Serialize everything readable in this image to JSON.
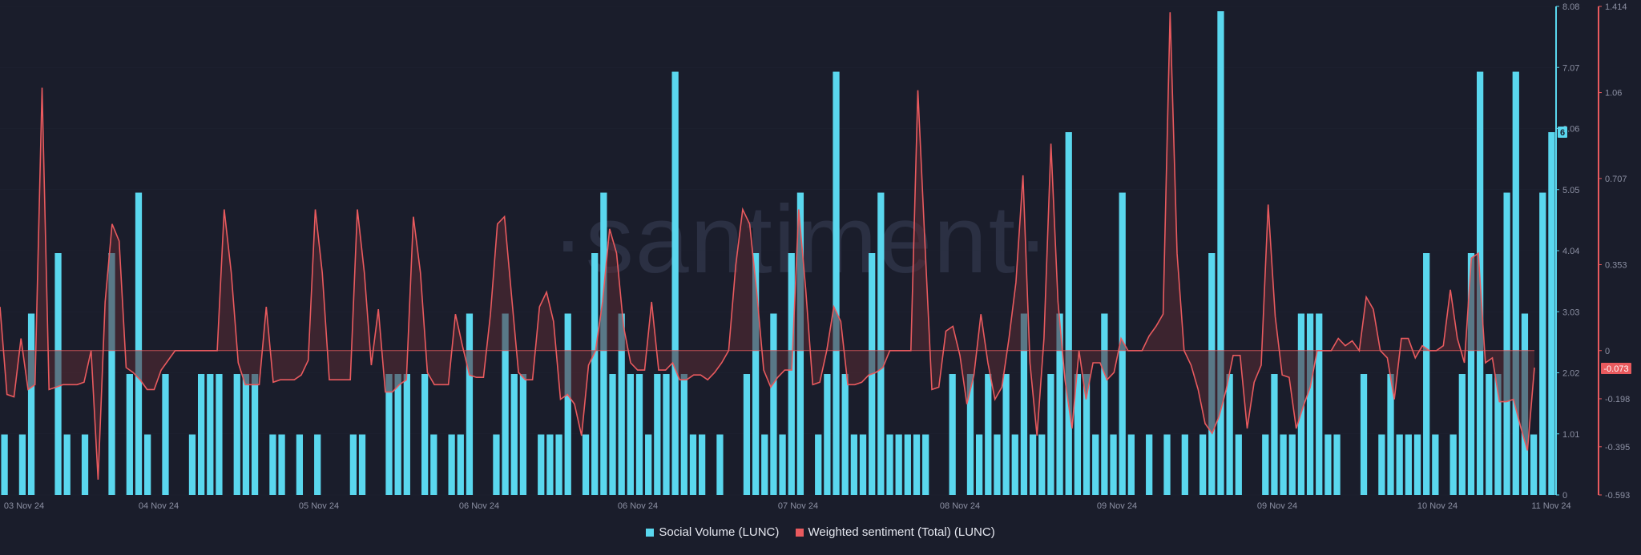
{
  "chart_data": {
    "type": "bar+line",
    "watermark": "·santiment·",
    "x_labels": [
      "03 Nov 24",
      "04 Nov 24",
      "05 Nov 24",
      "06 Nov 24",
      "06 Nov 24",
      "07 Nov 24",
      "08 Nov 24",
      "09 Nov 24",
      "09 Nov 24",
      "10 Nov 24",
      "11 Nov 24"
    ],
    "left_axis": {
      "label": "Social Volume (LUNC)",
      "ticks": [
        "8.08",
        "7.07",
        "6.06",
        "5.05",
        "4.04",
        "3.03",
        "2.02",
        "1.01",
        "0"
      ],
      "ylim": [
        0,
        8.08
      ]
    },
    "right_axis": {
      "label": "Weighted sentiment (Total) (LUNC)",
      "ticks": [
        "1.414",
        "1.06",
        "0.707",
        "0.353",
        "0",
        "-0.198",
        "-0.395",
        "-0.593"
      ],
      "ylim": [
        -0.593,
        1.414
      ]
    },
    "badges": {
      "social_volume_last": "6",
      "sentiment_last": "-0.073"
    },
    "colors": {
      "bars": "#5ad7ee",
      "line": "#e95a5e",
      "fill": "#5a2a33",
      "background": "#1a1d2b",
      "grid": "#2c3041"
    },
    "series": [
      {
        "name": "Social Volume (LUNC)",
        "type": "bar",
        "values": [
          1,
          0,
          1,
          3,
          0,
          0,
          4,
          1,
          0,
          1,
          0,
          0,
          4,
          0,
          2,
          5,
          1,
          0,
          2,
          0,
          0,
          1,
          2,
          2,
          2,
          0,
          2,
          2,
          2,
          0,
          1,
          1,
          0,
          1,
          0,
          1,
          0,
          0,
          0,
          1,
          1,
          0,
          0,
          2,
          2,
          2,
          0,
          2,
          1,
          0,
          1,
          1,
          3,
          0,
          0,
          1,
          3,
          2,
          2,
          0,
          1,
          1,
          1,
          3,
          0,
          1,
          4,
          5,
          2,
          3,
          2,
          2,
          1,
          2,
          2,
          7,
          2,
          1,
          1,
          0,
          1,
          0,
          0,
          2,
          4,
          1,
          3,
          1,
          4,
          5,
          0,
          1,
          2,
          7,
          2,
          1,
          1,
          4,
          5,
          1,
          1,
          1,
          1,
          1,
          0,
          0,
          2,
          0,
          2,
          1,
          2,
          1,
          2,
          1,
          3,
          1,
          1,
          2,
          3,
          6,
          2,
          2,
          1,
          3,
          1,
          5,
          1,
          0,
          1,
          0,
          1,
          0,
          1,
          0,
          1,
          4,
          8,
          2,
          1,
          0,
          0,
          1,
          2,
          1,
          1,
          3,
          3,
          3,
          1,
          1,
          0,
          0,
          2,
          0,
          1,
          2,
          1,
          1,
          1,
          4,
          1,
          0,
          1,
          2,
          4,
          7,
          2,
          2,
          5,
          7,
          3,
          1,
          5,
          6
        ]
      },
      {
        "name": "Weighted sentiment (Total) (LUNC)",
        "type": "line",
        "values": [
          0.18,
          -0.18,
          -0.19,
          0.05,
          -0.16,
          -0.14,
          1.08,
          -0.16,
          -0.15,
          -0.14,
          -0.14,
          -0.14,
          -0.13,
          0.0,
          -0.53,
          0.2,
          0.52,
          0.45,
          -0.07,
          -0.09,
          -0.12,
          -0.16,
          -0.16,
          -0.08,
          -0.04,
          0.0,
          0.0,
          0.0,
          0.0,
          0.0,
          0.0,
          0.0,
          0.58,
          0.32,
          -0.05,
          -0.14,
          -0.14,
          -0.14,
          0.18,
          -0.13,
          -0.12,
          -0.12,
          -0.12,
          -0.1,
          -0.04,
          0.58,
          0.32,
          -0.12,
          -0.12,
          -0.12,
          -0.12,
          0.58,
          0.32,
          -0.06,
          0.17,
          -0.17,
          -0.17,
          -0.14,
          -0.12,
          0.55,
          0.32,
          -0.09,
          -0.14,
          -0.14,
          -0.14,
          0.15,
          0.02,
          -0.1,
          -0.11,
          -0.11,
          0.15,
          0.52,
          0.55,
          0.23,
          -0.09,
          -0.12,
          -0.12,
          0.18,
          0.24,
          0.12,
          -0.2,
          -0.18,
          -0.22,
          -0.35,
          -0.06,
          0.0,
          0.2,
          0.5,
          0.4,
          0.1,
          -0.05,
          -0.08,
          -0.08,
          0.2,
          -0.08,
          -0.08,
          -0.05,
          -0.12,
          -0.12,
          -0.1,
          -0.1,
          -0.12,
          -0.09,
          -0.05,
          0.0,
          0.35,
          0.58,
          0.52,
          0.24,
          -0.08,
          -0.15,
          -0.11,
          -0.08,
          -0.08,
          0.58,
          0.25,
          -0.14,
          -0.13,
          0.0,
          0.18,
          0.12,
          -0.14,
          -0.14,
          -0.13,
          -0.1,
          -0.09,
          -0.07,
          0.0,
          0.0,
          0.0,
          0.0,
          1.07,
          0.45,
          -0.16,
          -0.15,
          0.08,
          0.1,
          -0.02,
          -0.22,
          -0.1,
          0.15,
          -0.05,
          -0.2,
          -0.15,
          0.05,
          0.28,
          0.72,
          -0.05,
          -0.35,
          0.05,
          0.85,
          0.2,
          -0.12,
          -0.32,
          0.0,
          -0.2,
          -0.05,
          -0.05,
          -0.12,
          -0.09,
          0.05,
          0.0,
          0.0,
          0.0,
          0.06,
          0.1,
          0.15,
          1.39,
          0.4,
          0.0,
          -0.06,
          -0.16,
          -0.3,
          -0.34,
          -0.27,
          -0.16,
          -0.02,
          -0.02,
          -0.32,
          -0.13,
          -0.06,
          0.6,
          0.14,
          -0.1,
          -0.11,
          -0.32,
          -0.23,
          -0.15,
          0.0,
          0.0,
          0.0,
          0.05,
          0.02,
          0.04,
          0.0,
          0.22,
          0.17,
          0.0,
          -0.03,
          -0.2,
          0.05,
          0.05,
          -0.03,
          0.02,
          0.0,
          0.0,
          0.02,
          0.25,
          0.05,
          -0.05,
          0.38,
          0.4,
          -0.05,
          -0.03,
          -0.21,
          -0.21,
          -0.2,
          -0.31,
          -0.41,
          -0.07
        ]
      }
    ]
  }
}
